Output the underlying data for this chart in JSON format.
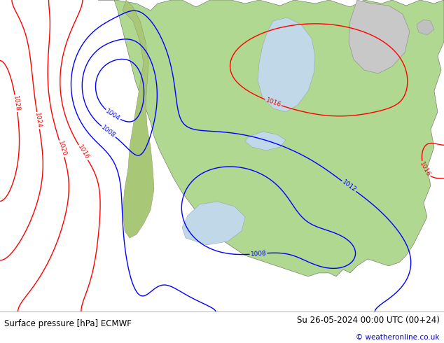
{
  "title_left": "Surface pressure [hPa] ECMWF",
  "title_right": "Su 26-05-2024 00:00 UTC (00+24)",
  "copyright": "© weatheronline.co.uk",
  "ocean_color": "#e8e8e8",
  "land_color": "#b0d890",
  "mountain_color": "#c8c8b0",
  "lake_color": "#c0d8e8",
  "footer_bg": "#ffffff",
  "fig_width": 6.34,
  "fig_height": 4.9,
  "dpi": 100
}
